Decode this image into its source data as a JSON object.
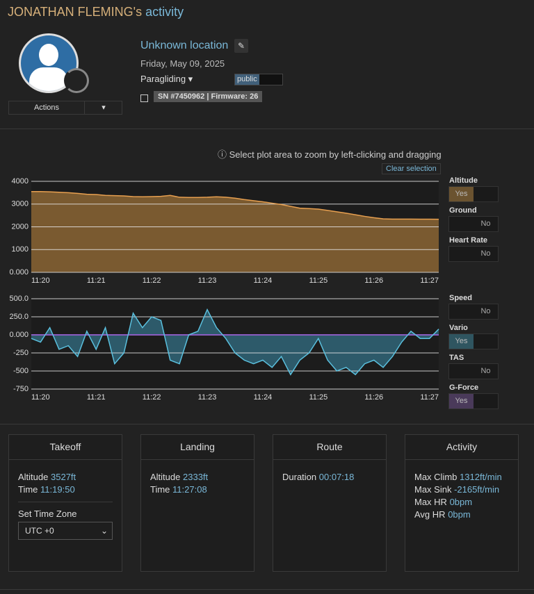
{
  "header": {
    "name": "JONATHAN FLEMING's",
    "suffix": "activity"
  },
  "profile": {
    "actions": "Actions",
    "location": "Unknown location",
    "date": "Friday, May 09, 2025",
    "activity_type": "Paragliding",
    "visibility": "public",
    "device": "SN #7450962 | Firmware: 26"
  },
  "hint": "Select plot area to zoom by left-clicking and dragging",
  "clear": "Clear selection",
  "toggles": [
    {
      "label": "Altitude",
      "state": "Yes",
      "color": "#6b5330"
    },
    {
      "label": "Ground",
      "state": "No"
    },
    {
      "label": "Heart Rate",
      "state": "No"
    },
    {
      "label": "Speed",
      "state": "No"
    },
    {
      "label": "Vario",
      "state": "Yes",
      "color": "#2f5560"
    },
    {
      "label": "TAS",
      "state": "No"
    },
    {
      "label": "G-Force",
      "state": "Yes",
      "color": "#4a3a5a"
    }
  ],
  "chart_data": [
    {
      "type": "area",
      "color": "#e8a050",
      "fill": "#7a5a30",
      "grid": true,
      "categories": [
        null,
        "11:20",
        null,
        null,
        null,
        null,
        null,
        "11:21",
        null,
        null,
        null,
        null,
        null,
        "11:22",
        null,
        null,
        null,
        null,
        null,
        "11:23",
        null,
        null,
        null,
        null,
        null,
        "11:24",
        null,
        null,
        null,
        null,
        null,
        "11:25",
        null,
        null,
        null,
        null,
        null,
        "11:26",
        null,
        null,
        null,
        null,
        null,
        "11:27",
        null
      ],
      "values": [
        3550,
        3550,
        3540,
        3520,
        3500,
        3470,
        3430,
        3420,
        3380,
        3370,
        3360,
        3330,
        3320,
        3330,
        3340,
        3380,
        3300,
        3290,
        3290,
        3300,
        3320,
        3300,
        3260,
        3200,
        3150,
        3100,
        3040,
        2980,
        2900,
        2820,
        2800,
        2780,
        2720,
        2660,
        2600,
        2530,
        2460,
        2400,
        2350,
        2340,
        2340,
        2340,
        2335,
        2335,
        2333
      ],
      "ylim": [
        0,
        4000
      ],
      "yticks": [
        {
          "value": 0,
          "label": "0.000"
        },
        1000,
        2000,
        3000,
        4000
      ]
    },
    {
      "type": "area",
      "color": "#5bc0de",
      "fill": "#2d5a6a",
      "zero_color": "#8a5cc0",
      "grid": true,
      "categories": [
        null,
        "11:20",
        null,
        null,
        null,
        null,
        null,
        "11:21",
        null,
        null,
        null,
        null,
        null,
        "11:22",
        null,
        null,
        null,
        null,
        null,
        "11:23",
        null,
        null,
        null,
        null,
        null,
        "11:24",
        null,
        null,
        null,
        null,
        null,
        "11:25",
        null,
        null,
        null,
        null,
        null,
        "11:26",
        null,
        null,
        null,
        null,
        null,
        "11:27",
        null
      ],
      "values": [
        -50,
        -100,
        100,
        -200,
        -150,
        -300,
        50,
        -200,
        100,
        -400,
        -250,
        300,
        100,
        250,
        200,
        -350,
        -400,
        0,
        50,
        350,
        100,
        -50,
        -250,
        -350,
        -400,
        -350,
        -450,
        -300,
        -550,
        -350,
        -250,
        -50,
        -350,
        -500,
        -450,
        -550,
        -400,
        -350,
        -450,
        -300,
        -100,
        50,
        -50,
        -50,
        80
      ],
      "ylim": [
        -750,
        500
      ],
      "yticks": [
        -750,
        -500,
        -250,
        {
          "value": 0,
          "label": "0.000"
        },
        {
          "value": 250,
          "label": "250.0"
        },
        {
          "value": 500,
          "label": "500.0"
        }
      ]
    }
  ],
  "cards": [
    {
      "title": "Takeoff",
      "rows": [
        {
          "label": "Altitude",
          "value": "3527ft"
        },
        {
          "label": "Time",
          "value": "11:19:50"
        }
      ],
      "timezone_label": "Set Time Zone",
      "timezone": "UTC +0"
    },
    {
      "title": "Landing",
      "rows": [
        {
          "label": "Altitude",
          "value": "2333ft"
        },
        {
          "label": "Time",
          "value": "11:27:08"
        }
      ]
    },
    {
      "title": "Route",
      "rows": [
        {
          "label": "Duration",
          "value": "00:07:18"
        }
      ]
    },
    {
      "title": "Activity",
      "rows": [
        {
          "label": "Max Climb",
          "value": "1312ft/min"
        },
        {
          "label": "Max Sink",
          "value": "-2165ft/min"
        },
        {
          "label": "Max HR",
          "value": "0bpm"
        },
        {
          "label": "Avg HR",
          "value": "0bpm"
        }
      ]
    }
  ]
}
